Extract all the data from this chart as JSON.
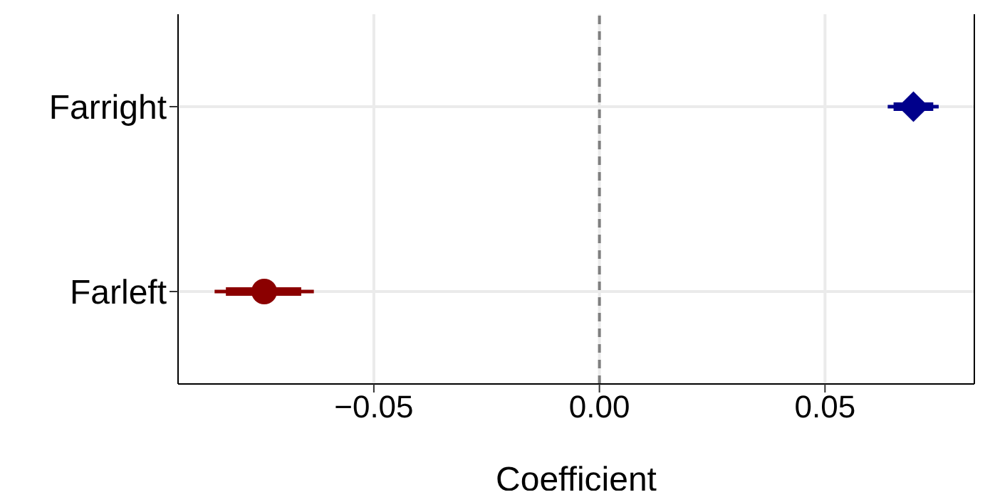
{
  "chart_data": {
    "type": "scatter",
    "orientation": "horizontal",
    "xlabel": "Coefficient",
    "categories": [
      "Farright",
      "Farleft"
    ],
    "series": [
      {
        "type": "bar",
        "colors": [
          "#00008b",
          "#8b0000"
        ],
        "base": [
          0.0652,
          -0.0828
        ],
        "values": [
          0.0088,
          0.0167
        ]
      },
      {
        "color": "#00008b",
        "marker": "diamond",
        "values": [
          0.0696,
          null
        ],
        "errors": [
          [
            0.0639,
            0.0752
          ],
          null
        ]
      },
      {
        "color": "#8b0000",
        "marker": "circle",
        "values": [
          null,
          -0.0743
        ],
        "errors": [
          null,
          [
            -0.0853,
            -0.0633
          ]
        ]
      }
    ],
    "xlim": [
      -0.0934,
      0.0831
    ],
    "xticks": [
      {
        "value": -0.05,
        "label": "−0.05"
      },
      {
        "value": 0,
        "label": "0.00"
      },
      {
        "value": 0.05,
        "label": "0.05"
      }
    ],
    "ref_lines": [
      {
        "axis": "x",
        "value": 0,
        "color": "#7f7f7f",
        "line_style": "dashed"
      }
    ],
    "grid": true,
    "legend": false
  }
}
